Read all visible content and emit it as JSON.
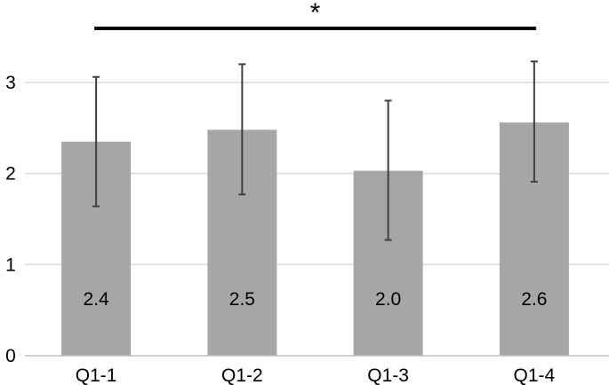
{
  "chart_data": {
    "type": "bar",
    "categories": [
      "Q1-1",
      "Q1-2",
      "Q1-3",
      "Q1-4"
    ],
    "values": [
      2.35,
      2.48,
      2.03,
      2.56
    ],
    "data_labels": [
      "2.4",
      "2.5",
      "2.0",
      "2.6"
    ],
    "error_bars": {
      "lower": [
        1.64,
        1.77,
        1.27,
        1.91
      ],
      "upper": [
        3.06,
        3.2,
        2.8,
        3.23
      ]
    },
    "significance": {
      "from": "Q1-1",
      "to": "Q1-4",
      "marker": "*"
    },
    "ylim": [
      0,
      3.5
    ],
    "yticks": [
      "0",
      "1",
      "2",
      "3"
    ],
    "grid": true,
    "colors": {
      "bar": "#a6a6a6",
      "grid": "#d9d9d9",
      "axis": "#bfbfbf",
      "error": "#404040",
      "bracket": "#000000"
    },
    "title": "",
    "xlabel": "",
    "ylabel": ""
  }
}
